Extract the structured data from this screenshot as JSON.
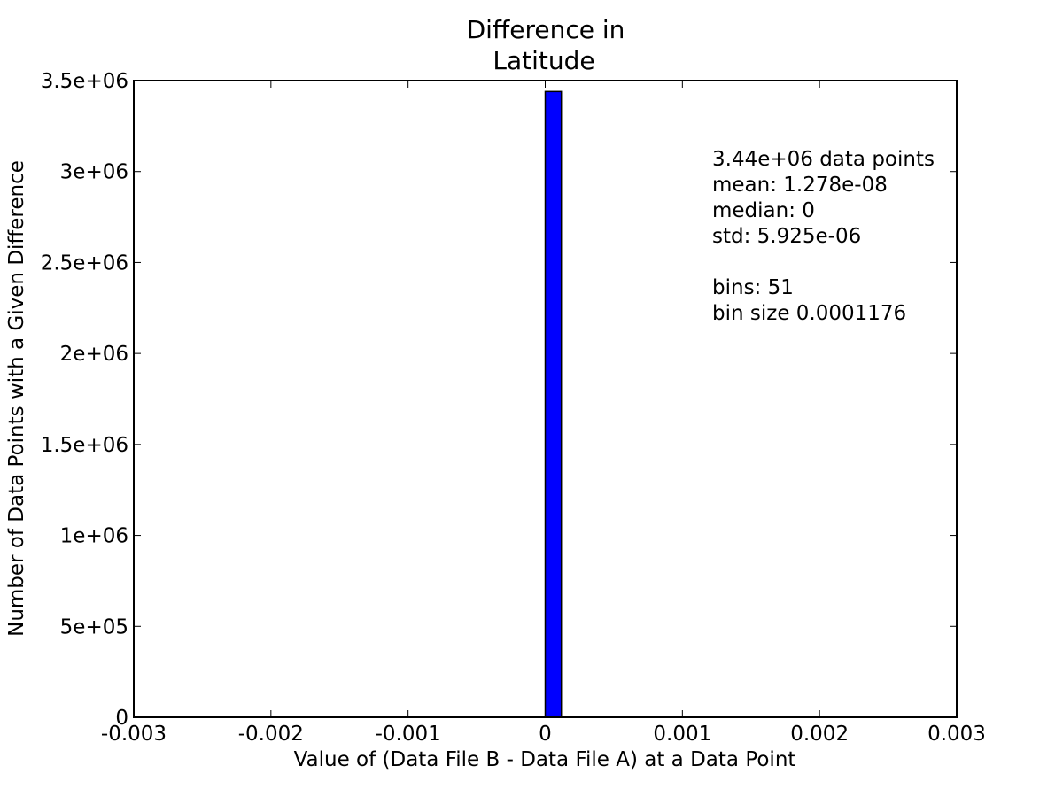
{
  "chart_data": {
    "type": "bar",
    "title": [
      "Difference in",
      "Latitude"
    ],
    "xlabel": "Value of (Data File B - Data File A) at a Data Point",
    "ylabel": "Number of Data Points with a Given Difference",
    "xlim": [
      -0.003,
      0.003
    ],
    "ylim": [
      0,
      3500000
    ],
    "grid": false,
    "xticks": [
      {
        "value": -0.003,
        "label": "-0.003"
      },
      {
        "value": -0.002,
        "label": "-0.002"
      },
      {
        "value": -0.001,
        "label": "-0.001"
      },
      {
        "value": 0,
        "label": "0"
      },
      {
        "value": 0.001,
        "label": "0.001"
      },
      {
        "value": 0.002,
        "label": "0.002"
      },
      {
        "value": 0.003,
        "label": "0.003"
      }
    ],
    "yticks": [
      {
        "value": 0,
        "label": "0"
      },
      {
        "value": 500000,
        "label": "5e+05"
      },
      {
        "value": 1000000,
        "label": "1e+06"
      },
      {
        "value": 1500000,
        "label": "1.5e+06"
      },
      {
        "value": 2000000,
        "label": "2e+06"
      },
      {
        "value": 2500000,
        "label": "2.5e+06"
      },
      {
        "value": 3000000,
        "label": "3e+06"
      },
      {
        "value": 3500000,
        "label": "3.5e+06"
      }
    ],
    "histogram": {
      "bin_range": [
        -0.0029988,
        0.0029988
      ],
      "bins": 51,
      "bin_size": 0.0001176,
      "nonzero_bins": [
        {
          "x0": 0,
          "x1": 0.0001176,
          "count": 3440000
        }
      ]
    },
    "bar_color": "#0000ff",
    "stats_annotation": [
      "3.44e+06 data points",
      "mean: 1.278e-08",
      "median: 0",
      "std: 5.925e-06",
      "",
      "bins: 51",
      "bin size 0.0001176"
    ]
  }
}
